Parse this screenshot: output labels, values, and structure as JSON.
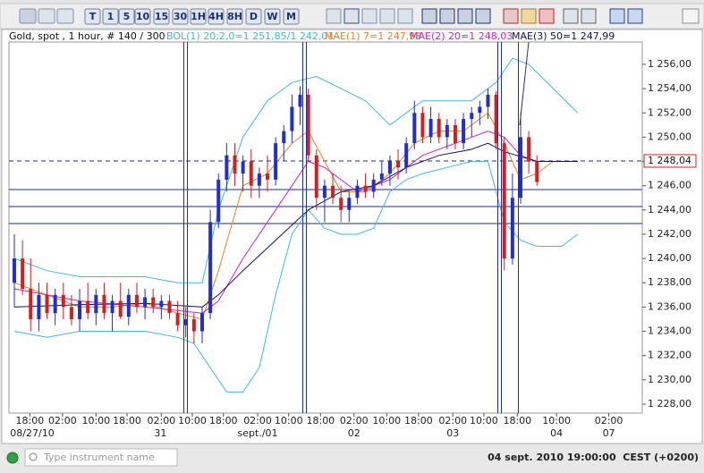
{
  "toolbar": {
    "periods": [
      "T",
      "1",
      "5",
      "10",
      "15",
      "30",
      "1H",
      "4H",
      "8H",
      "D",
      "W",
      "M"
    ]
  },
  "chart_data": {
    "type": "candlestick",
    "title": "Gold, spot , 1 hour, # 140 / 300",
    "up_color": "#1f2fd0",
    "down_color": "#d02020",
    "xlim": [
      -0.66,
      76.9
    ],
    "ylim": [
      1227.26,
      1257.84
    ],
    "yticks": [
      {
        "value": 1228,
        "label": "1 228,00"
      },
      {
        "value": 1230,
        "label": "1 230,00"
      },
      {
        "value": 1232,
        "label": "1 232,00"
      },
      {
        "value": 1234,
        "label": "1 234,00"
      },
      {
        "value": 1236,
        "label": "1 236,00"
      },
      {
        "value": 1238,
        "label": "1 238,00"
      },
      {
        "value": 1240,
        "label": "1 240,00"
      },
      {
        "value": 1242,
        "label": "1 242,00"
      },
      {
        "value": 1244,
        "label": "1 244,00"
      },
      {
        "value": 1246,
        "label": "1 246,00"
      },
      {
        "value": 1248,
        "label": "1 248,00"
      },
      {
        "value": 1250,
        "label": "1 250,00"
      },
      {
        "value": 1252,
        "label": "1 252,00"
      },
      {
        "value": 1254,
        "label": "1 254,00"
      },
      {
        "value": 1256,
        "label": "1 256,00"
      }
    ],
    "xticks": [
      {
        "value": 1.9,
        "label": "18:00"
      },
      {
        "value": 5.9,
        "label": "02:00"
      },
      {
        "value": 10,
        "label": "10:00"
      },
      {
        "value": 13.8,
        "label": "18:00"
      },
      {
        "value": 18,
        "label": "02:00"
      },
      {
        "value": 21.8,
        "label": "10:00"
      },
      {
        "value": 25.6,
        "label": "18:00"
      },
      {
        "value": 29.8,
        "label": "02:00"
      },
      {
        "value": 33.6,
        "label": "10:00"
      },
      {
        "value": 37.5,
        "label": "18:00"
      },
      {
        "value": 41.6,
        "label": "02:00"
      },
      {
        "value": 45.6,
        "label": "10:00"
      },
      {
        "value": 49.5,
        "label": "18:00"
      },
      {
        "value": 53.7,
        "label": "02:00"
      },
      {
        "value": 57.5,
        "label": "10:00"
      },
      {
        "value": 61.6,
        "label": "18:00"
      },
      {
        "value": 66.4,
        "label": "10:00"
      },
      {
        "value": 72.8,
        "label": "02:00"
      }
    ],
    "xdates": [
      {
        "value": 1.3,
        "label": "08/27/10"
      },
      {
        "value": 17.9,
        "label": "31"
      },
      {
        "value": 29.8,
        "label": "sept./01"
      },
      {
        "value": 41.6,
        "label": "02"
      },
      {
        "value": 53.7,
        "label": "03"
      },
      {
        "value": 66.4,
        "label": "04"
      },
      {
        "value": 72.8,
        "label": "07"
      }
    ],
    "candles": [
      [
        1238,
        1242,
        1236,
        1240
      ],
      [
        1240,
        1241.5,
        1237,
        1237.5
      ],
      [
        1237.5,
        1240,
        1234,
        1235
      ],
      [
        1235,
        1238,
        1234,
        1237
      ],
      [
        1237,
        1238,
        1235,
        1235.5
      ],
      [
        1235.5,
        1237.5,
        1234.5,
        1237
      ],
      [
        1237,
        1238,
        1235,
        1236
      ],
      [
        1236,
        1237,
        1234.5,
        1235
      ],
      [
        1235,
        1237.5,
        1234,
        1236.5
      ],
      [
        1236.5,
        1238,
        1235,
        1235.5
      ],
      [
        1235.5,
        1237.5,
        1234.5,
        1237
      ],
      [
        1237,
        1238,
        1235,
        1235.5
      ],
      [
        1235.5,
        1237,
        1234,
        1236.5
      ],
      [
        1236.5,
        1238,
        1235,
        1235.2
      ],
      [
        1235.2,
        1237.5,
        1234.5,
        1237
      ],
      [
        1237,
        1238,
        1235.5,
        1236
      ],
      [
        1236,
        1237.5,
        1235,
        1236.8
      ],
      [
        1236.8,
        1237.5,
        1235.5,
        1236
      ],
      [
        1236,
        1237,
        1235,
        1236.5
      ],
      [
        1236.5,
        1237,
        1235,
        1235.5
      ],
      [
        1235.5,
        1236.5,
        1234,
        1234.5
      ],
      [
        1234.5,
        1236,
        1233.5,
        1235
      ],
      [
        1235,
        1235.5,
        1233,
        1234
      ],
      [
        1234,
        1236,
        1233,
        1235.5
      ],
      [
        1235.5,
        1244,
        1235,
        1243
      ],
      [
        1243,
        1247,
        1242.5,
        1246.5
      ],
      [
        1246.5,
        1249.5,
        1245.5,
        1248.5
      ],
      [
        1248.5,
        1249.5,
        1246,
        1247
      ],
      [
        1247,
        1248.5,
        1245.5,
        1248
      ],
      [
        1248,
        1249,
        1245,
        1246
      ],
      [
        1246,
        1247.5,
        1245,
        1247
      ],
      [
        1247,
        1248.5,
        1245.5,
        1246.5
      ],
      [
        1246.5,
        1250,
        1246,
        1249.5
      ],
      [
        1249.5,
        1251,
        1248,
        1250.5
      ],
      [
        1250.5,
        1253.5,
        1249.5,
        1252.5
      ],
      [
        1252.5,
        1254.2,
        1251,
        1253.5
      ],
      [
        1253.5,
        1254,
        1248,
        1248.5
      ],
      [
        1248.5,
        1249,
        1244,
        1245
      ],
      [
        1245,
        1246.5,
        1243,
        1246
      ],
      [
        1246,
        1247,
        1244.5,
        1245
      ],
      [
        1245,
        1246,
        1243,
        1244
      ],
      [
        1244,
        1245.5,
        1243,
        1245
      ],
      [
        1245,
        1246.5,
        1244.5,
        1246
      ],
      [
        1246,
        1247,
        1245,
        1245.5
      ],
      [
        1245.5,
        1247,
        1245,
        1246.5
      ],
      [
        1246.5,
        1248,
        1246,
        1247
      ],
      [
        1247,
        1248.5,
        1246,
        1248
      ],
      [
        1248,
        1249,
        1246.5,
        1247.5
      ],
      [
        1247.5,
        1250,
        1247,
        1249.5
      ],
      [
        1249.5,
        1253,
        1249,
        1252
      ],
      [
        1252,
        1252.5,
        1249.5,
        1250
      ],
      [
        1250,
        1252.5,
        1249.5,
        1251.5
      ],
      [
        1251.5,
        1252,
        1249.5,
        1250
      ],
      [
        1250,
        1251.5,
        1249,
        1251
      ],
      [
        1251,
        1251.5,
        1249,
        1249.5
      ],
      [
        1249.5,
        1252,
        1249,
        1251.5
      ],
      [
        1251.5,
        1252.5,
        1250,
        1252
      ],
      [
        1252,
        1253,
        1251,
        1252.5
      ],
      [
        1252.5,
        1254,
        1251.5,
        1253.5
      ],
      [
        1253.5,
        1253.8,
        1249,
        1249.5
      ],
      [
        1249.5,
        1250,
        1239,
        1240
      ],
      [
        1240,
        1247,
        1239.5,
        1245
      ],
      [
        1245,
        1252,
        1244.5,
        1250
      ],
      [
        1250,
        1250.5,
        1247,
        1248
      ],
      [
        1248,
        1248.5,
        1246,
        1246.3
      ]
    ],
    "indicators": [
      {
        "name": "BOL(1) 20;2,0=1 251,85/1 242,01",
        "color": "#40b8e0",
        "x": [
          0,
          4,
          8,
          12,
          16,
          20,
          23,
          25,
          28,
          31,
          34,
          37,
          40,
          43,
          46,
          48,
          50,
          53,
          56,
          59,
          61,
          63,
          66,
          69
        ],
        "values": [
          1240,
          1239,
          1238.5,
          1238.5,
          1238.5,
          1238,
          1238,
          1244,
          1250,
          1253,
          1254.5,
          1255,
          1254,
          1253,
          1251,
          1252,
          1253,
          1253,
          1253,
          1254.5,
          1256.5,
          1256,
          1254,
          1252
        ]
      },
      {
        "color": "#40b8e0",
        "x": [
          0,
          4,
          8,
          12,
          16,
          20,
          22,
          24,
          26,
          28,
          30,
          32,
          34,
          36,
          38,
          40,
          42,
          44,
          46,
          48,
          50,
          53,
          56,
          58,
          60,
          62,
          64,
          67,
          69
        ],
        "values": [
          1234,
          1233.5,
          1234,
          1234,
          1234,
          1233.5,
          1233,
          1231,
          1229,
          1229,
          1231,
          1237,
          1242,
          1244,
          1242.5,
          1242,
          1242,
          1242.5,
          1245.5,
          1246.5,
          1247,
          1247.5,
          1248,
          1248,
          1243,
          1241.5,
          1241,
          1241,
          1242
        ]
      },
      {
        "name": "MAE(1) 7=1 247,98",
        "color": "#f08020",
        "x": [
          0,
          4,
          8,
          12,
          16,
          20,
          23,
          25,
          28,
          31,
          34,
          36,
          38,
          40,
          43,
          46,
          49,
          52,
          55,
          58,
          60,
          62,
          64,
          66,
          69
        ],
        "values": [
          1238,
          1237,
          1236,
          1236,
          1236.3,
          1235.5,
          1235,
          1239,
          1246,
          1247,
          1249.5,
          1250.5,
          1248,
          1245.5,
          1245.5,
          1247,
          1249.5,
          1250.5,
          1250.5,
          1252,
          1249.5,
          1246.5,
          1247,
          1248,
          1248
        ]
      },
      {
        "name": "MAE(2) 20=1 248,03",
        "color": "#d020d0",
        "x": [
          0,
          8,
          16,
          23,
          25,
          28,
          32,
          36,
          38,
          42,
          46,
          50,
          54,
          58,
          60,
          62,
          64,
          69
        ],
        "values": [
          1237.5,
          1236.5,
          1236,
          1235.5,
          1236.5,
          1240,
          1244,
          1248,
          1247.5,
          1245.5,
          1246.5,
          1248.5,
          1249.5,
          1250.5,
          1250,
          1248.5,
          1248,
          1248
        ]
      },
      {
        "name": "MAE(3) 50=1 247,99",
        "color": "#101060",
        "x": [
          0,
          8,
          16,
          23,
          25,
          28,
          32,
          36,
          40,
          44,
          48,
          52,
          56,
          58,
          60,
          64,
          69
        ],
        "values": [
          1236,
          1236.2,
          1236.3,
          1236,
          1237,
          1239,
          1241.5,
          1244,
          1245.5,
          1246,
          1247.5,
          1248.5,
          1249,
          1249.5,
          1248.8,
          1248,
          1248
        ]
      }
    ],
    "hlines": [
      1245.68,
      1244.28,
      1242.88
    ],
    "current_price": {
      "value": 1248.04,
      "label": "1 248,04"
    }
  },
  "status_bar": {
    "search_placeholder": "Type instrument name",
    "datetime": "04 sept. 2010 19:00:00  CEST (+0200)"
  }
}
